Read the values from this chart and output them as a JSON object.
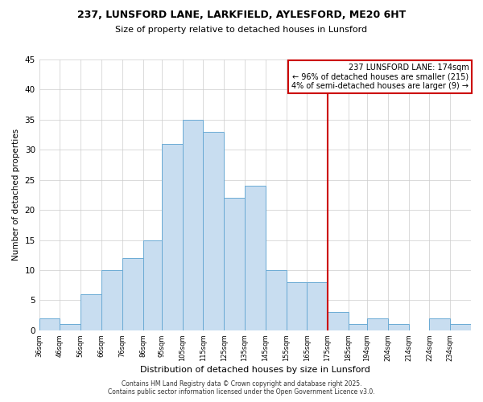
{
  "title1": "237, LUNSFORD LANE, LARKFIELD, AYLESFORD, ME20 6HT",
  "title2": "Size of property relative to detached houses in Lunsford",
  "xlabel": "Distribution of detached houses by size in Lunsford",
  "ylabel": "Number of detached properties",
  "bin_labels": [
    "36sqm",
    "46sqm",
    "56sqm",
    "66sqm",
    "76sqm",
    "86sqm",
    "95sqm",
    "105sqm",
    "115sqm",
    "125sqm",
    "135sqm",
    "145sqm",
    "155sqm",
    "165sqm",
    "175sqm",
    "185sqm",
    "194sqm",
    "204sqm",
    "214sqm",
    "224sqm",
    "234sqm"
  ],
  "bin_edges": [
    36,
    46,
    56,
    66,
    76,
    86,
    95,
    105,
    115,
    125,
    135,
    145,
    155,
    165,
    175,
    185,
    194,
    204,
    214,
    224,
    234,
    244
  ],
  "counts": [
    2,
    1,
    6,
    10,
    12,
    15,
    31,
    35,
    33,
    22,
    24,
    10,
    8,
    8,
    3,
    1,
    2,
    1,
    0,
    2,
    1
  ],
  "bar_color": "#c8ddf0",
  "bar_edge_color": "#6aaad4",
  "vline_x": 175,
  "vline_color": "#cc0000",
  "annotation_line1": "237 LUNSFORD LANE: 174sqm",
  "annotation_line2": "← 96% of detached houses are smaller (215)",
  "annotation_line3": "4% of semi-detached houses are larger (9) →",
  "ylim": [
    0,
    45
  ],
  "yticks": [
    0,
    5,
    10,
    15,
    20,
    25,
    30,
    35,
    40,
    45
  ],
  "footnote1": "Contains HM Land Registry data © Crown copyright and database right 2025.",
  "footnote2": "Contains public sector information licensed under the Open Government Licence v3.0.",
  "background_color": "#ffffff",
  "grid_color": "#cccccc"
}
